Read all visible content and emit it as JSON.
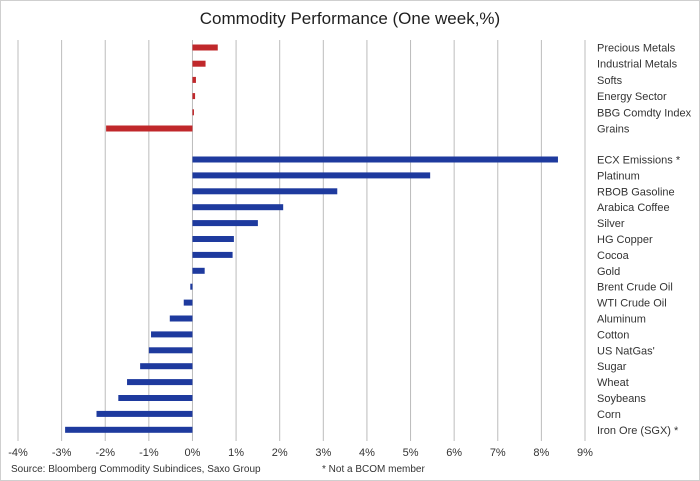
{
  "chart_data": {
    "type": "bar",
    "orientation": "horizontal",
    "title": "Commodity Performance (One week,%)",
    "xlim": [
      -4,
      9
    ],
    "x_ticks": [
      "-4%",
      "-3%",
      "-2%",
      "-1%",
      "0%",
      "1%",
      "2%",
      "3%",
      "4%",
      "5%",
      "6%",
      "7%",
      "8%",
      "9%"
    ],
    "grid": "vertical",
    "colors": {
      "sectors": "#c0282b",
      "commodities": "#1e3a9e",
      "grid": "#bcbcbc"
    },
    "series": [
      {
        "group": "sectors",
        "color": "#c0282b",
        "categories": [
          "Precious Metals",
          "Industrial Metals",
          "Softs",
          "Energy Sector",
          "BBG Comdty Index",
          "Grains"
        ],
        "values": [
          0.58,
          0.3,
          0.08,
          0.06,
          0.02,
          -1.98
        ]
      },
      {
        "group": "commodities",
        "color": "#1e3a9e",
        "categories": [
          "ECX Emissions *",
          "Platinum",
          "RBOB Gasoline",
          "Arabica Coffee",
          "Silver",
          "HG Copper",
          "Cocoa",
          "Gold",
          "Brent Crude Oil",
          "WTI Crude Oil",
          "Aluminum",
          "Cotton",
          "US NatGas'",
          "Sugar",
          "Wheat",
          "Soybeans",
          "Corn",
          "Iron Ore (SGX) *"
        ],
        "values": [
          8.38,
          5.45,
          3.32,
          2.08,
          1.5,
          0.95,
          0.92,
          0.28,
          -0.05,
          -0.2,
          -0.52,
          -0.95,
          -1.0,
          -1.2,
          -1.5,
          -1.7,
          -2.2,
          -2.92
        ]
      }
    ]
  },
  "footer": {
    "source": "Source: Bloomberg Commodity Subindices, Saxo Group",
    "note": "* Not a BCOM member"
  }
}
